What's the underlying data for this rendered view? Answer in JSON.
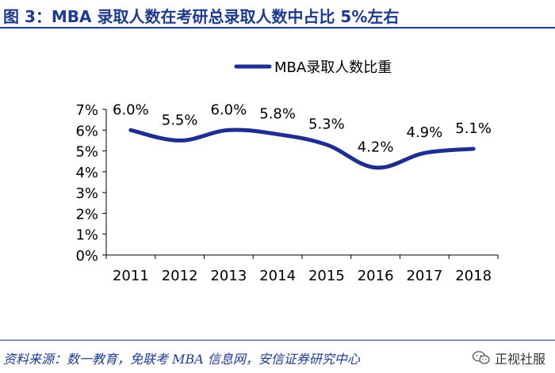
{
  "figure": {
    "title": "图 3：MBA 录取人数在考研总录取人数中占比 5%左右",
    "source": "资料来源：数一教育，免联考 MBA 信息网，安信证券研究中心",
    "watermark": "正视社服",
    "watermark_icon": "wechat-icon"
  },
  "colors": {
    "accent": "#1f3a8a",
    "line": "#1f2d8f",
    "text": "#000000"
  },
  "chart_data": {
    "type": "line",
    "title": "",
    "xlabel": "",
    "ylabel": "",
    "categories": [
      "2011",
      "2012",
      "2013",
      "2014",
      "2015",
      "2016",
      "2017",
      "2018"
    ],
    "series": [
      {
        "name": "MBA录取人数比重",
        "values": [
          6.0,
          5.5,
          6.0,
          5.8,
          5.3,
          4.2,
          4.9,
          5.1
        ]
      }
    ],
    "data_labels": [
      "6.0%",
      "5.5%",
      "6.0%",
      "5.8%",
      "5.3%",
      "4.2%",
      "4.9%",
      "5.1%"
    ],
    "y_ticks": [
      "0%",
      "1%",
      "2%",
      "3%",
      "4%",
      "5%",
      "6%",
      "7%"
    ],
    "ylim": [
      0,
      7
    ],
    "grid": false,
    "legend": "top",
    "smooth": true
  }
}
